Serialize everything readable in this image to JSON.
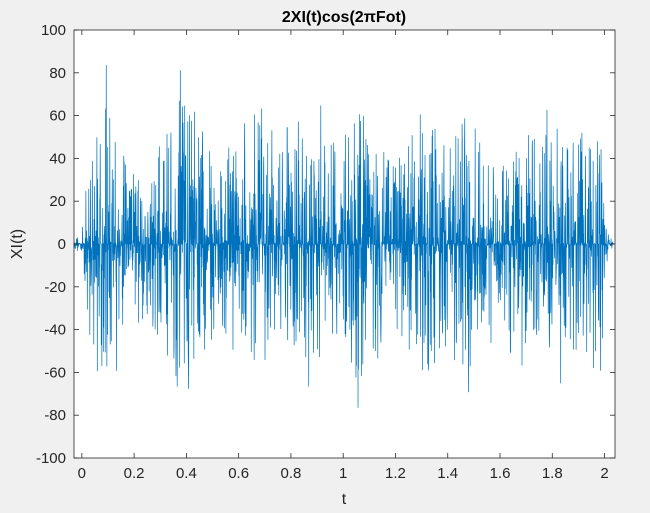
{
  "chart_data": {
    "type": "line",
    "title": "2XI(t)cos(2πFot)",
    "xlabel": "t",
    "ylabel": "XI(t)",
    "xlim": [
      -0.03,
      2.04
    ],
    "ylim": [
      -100,
      100
    ],
    "xticks": [
      "0",
      "0.2",
      "0.4",
      "0.6",
      "0.8",
      "1",
      "1.2",
      "1.4",
      "1.6",
      "1.8",
      "2"
    ],
    "yticks": [
      "100",
      "80",
      "60",
      "40",
      "20",
      "0",
      "-20",
      "-40",
      "-60",
      "-80",
      "-100"
    ],
    "grid": false,
    "series": [
      {
        "color": "#0072BD",
        "t_range": [
          -0.03,
          2.04
        ],
        "peak_max": 86,
        "peak_min": -82,
        "envelope": [
          {
            "t": -0.03,
            "amp": 2
          },
          {
            "t": 0.0,
            "amp": 5
          },
          {
            "t": 0.02,
            "amp": 35
          },
          {
            "t": 0.05,
            "amp": 58
          },
          {
            "t": 0.1,
            "amp": 72
          },
          {
            "t": 0.15,
            "amp": 52
          },
          {
            "t": 0.2,
            "amp": 40
          },
          {
            "t": 0.25,
            "amp": 35
          },
          {
            "t": 0.3,
            "amp": 48
          },
          {
            "t": 0.35,
            "amp": 65
          },
          {
            "t": 0.4,
            "amp": 70
          },
          {
            "t": 0.45,
            "amp": 58
          },
          {
            "t": 0.5,
            "amp": 45
          },
          {
            "t": 0.55,
            "amp": 42
          },
          {
            "t": 0.6,
            "amp": 55
          },
          {
            "t": 0.65,
            "amp": 62
          },
          {
            "t": 0.7,
            "amp": 60
          },
          {
            "t": 0.75,
            "amp": 40
          },
          {
            "t": 0.8,
            "amp": 62
          },
          {
            "t": 0.85,
            "amp": 60
          },
          {
            "t": 0.9,
            "amp": 55
          },
          {
            "t": 0.95,
            "amp": 48
          },
          {
            "t": 1.0,
            "amp": 58
          },
          {
            "t": 1.05,
            "amp": 65
          },
          {
            "t": 1.1,
            "amp": 60
          },
          {
            "t": 1.15,
            "amp": 50
          },
          {
            "t": 1.2,
            "amp": 40
          },
          {
            "t": 1.25,
            "amp": 58
          },
          {
            "t": 1.3,
            "amp": 62
          },
          {
            "t": 1.35,
            "amp": 60
          },
          {
            "t": 1.4,
            "amp": 45
          },
          {
            "t": 1.45,
            "amp": 58
          },
          {
            "t": 1.5,
            "amp": 62
          },
          {
            "t": 1.55,
            "amp": 40
          },
          {
            "t": 1.6,
            "amp": 35
          },
          {
            "t": 1.65,
            "amp": 55
          },
          {
            "t": 1.7,
            "amp": 60
          },
          {
            "t": 1.75,
            "amp": 52
          },
          {
            "t": 1.8,
            "amp": 55
          },
          {
            "t": 1.85,
            "amp": 55
          },
          {
            "t": 1.9,
            "amp": 50
          },
          {
            "t": 1.95,
            "amp": 60
          },
          {
            "t": 1.99,
            "amp": 60
          },
          {
            "t": 2.0,
            "amp": 15
          },
          {
            "t": 2.02,
            "amp": 3
          },
          {
            "t": 2.04,
            "amp": 1
          }
        ]
      }
    ]
  }
}
